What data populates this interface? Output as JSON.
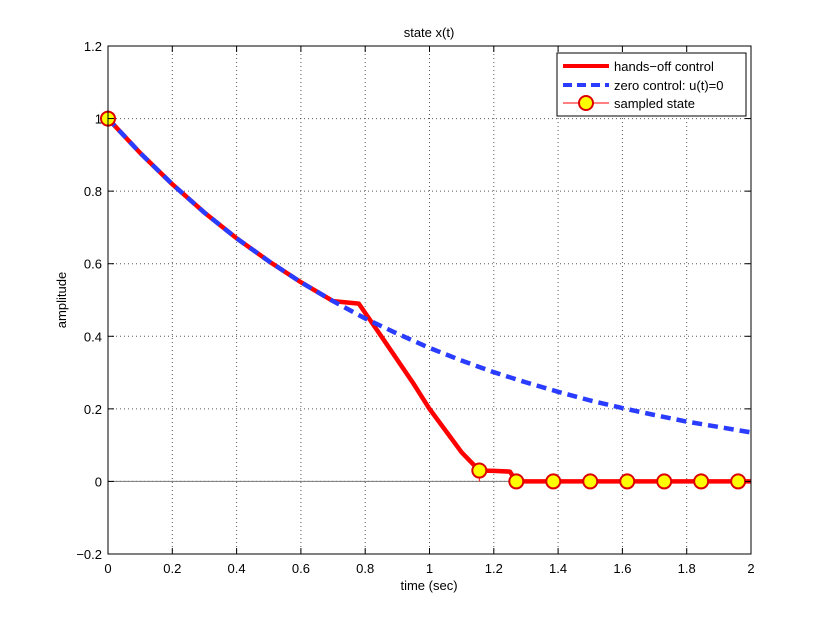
{
  "chart_data": {
    "type": "line",
    "title": "state x(t)",
    "xlabel": "time (sec)",
    "ylabel": "amplitude",
    "xlim": [
      0,
      2
    ],
    "ylim": [
      -0.2,
      1.2
    ],
    "xticks": [
      0,
      0.2,
      0.4,
      0.6,
      0.8,
      1,
      1.2,
      1.4,
      1.6,
      1.8,
      2
    ],
    "xtick_labels": [
      "0",
      "0.2",
      "0.4",
      "0.6",
      "0.8",
      "1",
      "1.2",
      "1.4",
      "1.6",
      "1.8",
      "2"
    ],
    "yticks": [
      -0.2,
      0,
      0.2,
      0.4,
      0.6,
      0.8,
      1,
      1.2
    ],
    "ytick_labels": [
      "−0.2",
      "0",
      "0.2",
      "0.4",
      "0.6",
      "0.8",
      "1",
      "1.2"
    ],
    "grid": true,
    "legend_position": "top-right",
    "colors": {
      "hands_off": "#ff0000",
      "zero_control": "#2a3cff",
      "marker_fill": "#ffff00",
      "marker_edge": "#dd0000",
      "zero_line": "#777777",
      "grid": "#555555"
    },
    "series": [
      {
        "name": "hands−off control",
        "style": "solid",
        "x": [
          0,
          0.1,
          0.2,
          0.3,
          0.4,
          0.5,
          0.6,
          0.7,
          0.78,
          0.85,
          0.95,
          1.0,
          1.05,
          1.1,
          1.155,
          1.2,
          1.25,
          1.27,
          1.4,
          1.6,
          1.8,
          2.0
        ],
        "y": [
          1.0,
          0.905,
          0.819,
          0.741,
          0.67,
          0.607,
          0.549,
          0.497,
          0.49,
          0.4,
          0.27,
          0.2,
          0.14,
          0.08,
          0.03,
          0.029,
          0.027,
          0.0,
          0.0,
          0.0,
          0.0,
          0.0
        ]
      },
      {
        "name": "zero control: u(t)=0",
        "style": "dashed",
        "x": [
          0,
          0.1,
          0.2,
          0.3,
          0.4,
          0.5,
          0.6,
          0.7,
          0.8,
          0.9,
          1.0,
          1.1,
          1.2,
          1.3,
          1.4,
          1.5,
          1.6,
          1.7,
          1.8,
          1.9,
          2.0
        ],
        "y": [
          1.0,
          0.905,
          0.819,
          0.741,
          0.67,
          0.607,
          0.549,
          0.497,
          0.449,
          0.407,
          0.368,
          0.333,
          0.301,
          0.273,
          0.247,
          0.223,
          0.202,
          0.183,
          0.165,
          0.15,
          0.135
        ]
      },
      {
        "name": "sampled state",
        "style": "stem",
        "x": [
          0,
          1.155,
          1.27,
          1.385,
          1.5,
          1.615,
          1.73,
          1.845,
          1.96
        ],
        "y": [
          1.0,
          0.03,
          0.0,
          0.0,
          0.0,
          0.0,
          0.0,
          0.0,
          0.0
        ]
      }
    ]
  }
}
